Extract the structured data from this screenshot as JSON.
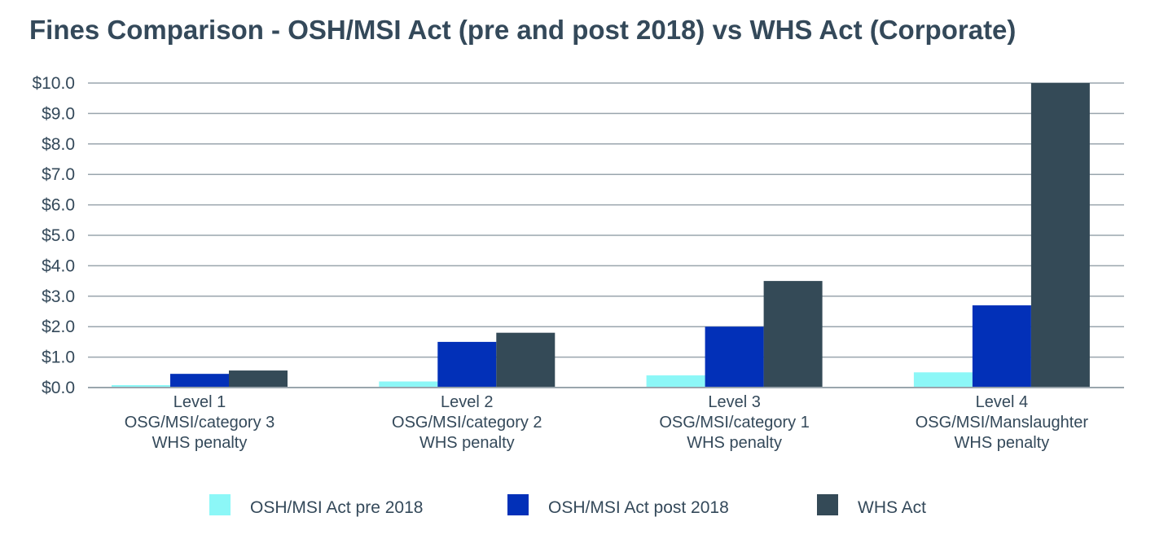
{
  "chart_data": {
    "type": "bar",
    "title": "Fines Comparison - OSH/MSI Act (pre and post 2018) vs WHS Act (Corporate)",
    "xlabel": "",
    "ylabel": "",
    "ylim": [
      0,
      10
    ],
    "yticks": [
      "$0.0",
      "$1.0",
      "$2.0",
      "$3.0",
      "$4.0",
      "$5.0",
      "$6.0",
      "$7.0",
      "$8.0",
      "$9.0",
      "$10.0"
    ],
    "grid": true,
    "legend_position": "bottom",
    "categories": [
      [
        "Level 1",
        "OSG/MSI/category 3",
        "WHS penalty"
      ],
      [
        "Level 2",
        "OSG/MSI/category 2",
        "WHS penalty"
      ],
      [
        "Level 3",
        "OSG/MSI/category 1",
        "WHS penalty"
      ],
      [
        "Level 4",
        "OSG/MSI/Manslaughter",
        "WHS penalty"
      ]
    ],
    "series": [
      {
        "name": "OSH/MSI Act pre 2018",
        "color": "#8cf7f7",
        "values": [
          0.08,
          0.2,
          0.4,
          0.5
        ]
      },
      {
        "name": "OSH/MSI Act post 2018",
        "color": "#0230b8",
        "values": [
          0.45,
          1.5,
          2.0,
          2.7
        ]
      },
      {
        "name": "WHS Act",
        "color": "#344a57",
        "values": [
          0.56,
          1.8,
          3.5,
          10.0
        ]
      }
    ]
  }
}
